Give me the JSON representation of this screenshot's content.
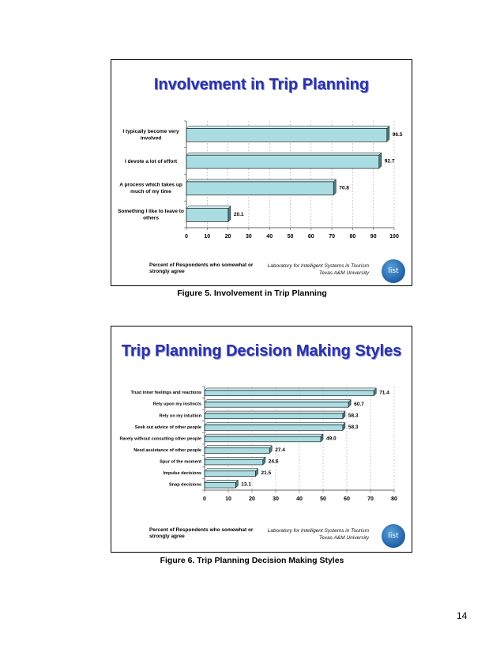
{
  "figure1": {
    "title": "Involvement in Trip Planning",
    "footnote": "Percent of Respondents who somewhat or strongly agree",
    "lab_line1": "Laboratory for Intelligent Systems in Tourism",
    "lab_line2": "Texas A&M University",
    "logo_text": "list",
    "caption": "Figure 5. Involvement in Trip Planning",
    "colors": {
      "bar": "#a9dde2",
      "bar_side": "#4f7f84",
      "grid": "#999999"
    }
  },
  "figure2": {
    "title": "Trip Planning Decision Making Styles",
    "footnote": "Percent of Respondents who somewhat or strongly agree",
    "lab_line1": "Laboratory for Intelligent Systems in Tourism",
    "lab_line2": "Texas A&M University",
    "logo_text": "list",
    "caption": "Figure 6. Trip Planning Decision Making Styles",
    "colors": {
      "bar": "#a9dde2",
      "bar_side": "#4f7f84",
      "grid": "#999999"
    }
  },
  "page_number": "14",
  "chart_data": [
    {
      "type": "bar",
      "orientation": "horizontal",
      "title": "Involvement in Trip Planning",
      "categories": [
        [
          "I typically become very",
          "involved"
        ],
        [
          "I devote a lot of effort"
        ],
        [
          "A process which takes up",
          "much of my time"
        ],
        [
          "Something I like to leave to",
          "others"
        ]
      ],
      "values": [
        96.5,
        92.7,
        70.8,
        20.1
      ],
      "value_labels": [
        "96.5",
        "92.7",
        "70.8",
        "20.1"
      ],
      "xlim": [
        0,
        100
      ],
      "xticks": [
        0,
        10,
        20,
        30,
        40,
        50,
        60,
        70,
        80,
        90,
        100
      ],
      "xlabel": "Percent of Respondents who somewhat or strongly agree"
    },
    {
      "type": "bar",
      "orientation": "horizontal",
      "title": "Trip Planning Decision Making Styles",
      "categories": [
        [
          "Trust inner feelings and reactions"
        ],
        [
          "Rely upon my instincts"
        ],
        [
          "Rely on my intuition"
        ],
        [
          "Seek out advice of other people"
        ],
        [
          "Rarely without consulting other people"
        ],
        [
          "Need assistance of other people"
        ],
        [
          "Spur of the moment"
        ],
        [
          "Impulse decisions"
        ],
        [
          "Snap decisions"
        ]
      ],
      "values": [
        71.4,
        60.7,
        58.3,
        58.3,
        49.0,
        27.4,
        24.6,
        21.5,
        13.1
      ],
      "value_labels": [
        "71.4",
        "60.7",
        "58.3",
        "58.3",
        "49.0",
        "27.4",
        "24.6",
        "21.5",
        "13.1"
      ],
      "xlim": [
        0,
        80
      ],
      "xticks": [
        0,
        10,
        20,
        30,
        40,
        50,
        60,
        70,
        80
      ],
      "xlabel": "Percent of Respondents who somewhat or strongly agree"
    }
  ]
}
